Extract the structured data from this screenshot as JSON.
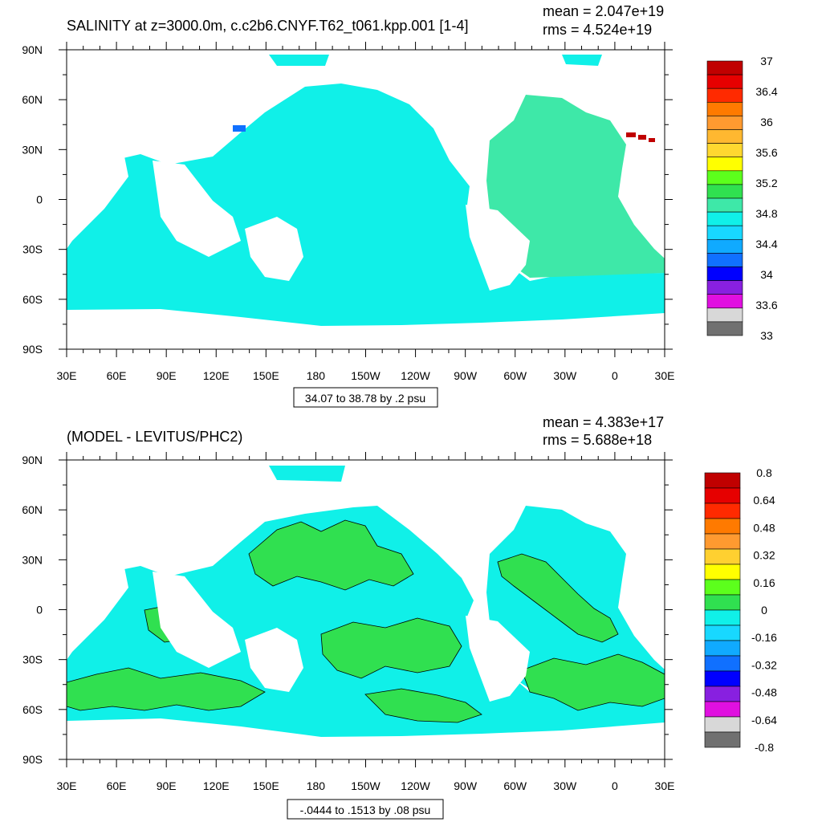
{
  "panels": [
    {
      "title": "SALINITY at z=3000.0m, c.c2b6.CNYF.T62_t061.kpp.001 [1-4]",
      "mean_label": "mean = 2.047e+19",
      "rms_label": "rms = 4.524e+19",
      "range_label": "34.07 to 38.78 by .2 psu",
      "colorbar_labels": [
        "37",
        "36.4",
        "36",
        "35.6",
        "35.2",
        "34.8",
        "34.4",
        "34",
        "33.6",
        "33"
      ]
    },
    {
      "title": "(MODEL - LEVITUS/PHC2)",
      "mean_label": "mean = 4.383e+17",
      "rms_label": "rms = 5.688e+18",
      "range_label": "-.0444 to .1513 by .08 psu",
      "colorbar_labels": [
        "0.8",
        "0.64",
        "0.48",
        "0.32",
        "0.16",
        "0",
        "-0.16",
        "-0.32",
        "-0.48",
        "-0.64",
        "-0.8"
      ]
    }
  ],
  "chart_data": [
    {
      "type": "heatmap",
      "title": "SALINITY at z=3000.0m, c.c2b6.CNYF.T62_t061.kpp.001 [1-4]",
      "mean": 2.047e+19,
      "rms": 4.524e+19,
      "x_tick_labels": [
        "30E",
        "60E",
        "90E",
        "120E",
        "150E",
        "180",
        "150W",
        "120W",
        "90W",
        "60W",
        "30W",
        "0",
        "30E"
      ],
      "y_tick_labels": [
        "90N",
        "60N",
        "30N",
        "0",
        "30S",
        "60S",
        "90S"
      ],
      "xlim": [
        30,
        390
      ],
      "ylim": [
        -90,
        90
      ],
      "colorbar_ticks": [
        37,
        36.4,
        36,
        35.6,
        35.2,
        34.8,
        34.4,
        34,
        33.6,
        33
      ],
      "colors": [
        "#c00000",
        "#e60000",
        "#ff2a00",
        "#ff7a00",
        "#ff9a30",
        "#ffb830",
        "#ffd830",
        "#ffff00",
        "#5cff1c",
        "#30e050",
        "#3ee8a8",
        "#10f0e8",
        "#18d8ff",
        "#10aaff",
        "#1070ff",
        "#0000ff",
        "#8820e0",
        "#e010e0",
        "#d8d8d8",
        "#707070"
      ],
      "dominant_value_range": [
        34.8,
        35.2
      ]
    },
    {
      "type": "heatmap",
      "title": "(MODEL - LEVITUS/PHC2)",
      "mean": 4.383e+17,
      "rms": 5.688e+18,
      "x_tick_labels": [
        "30E",
        "60E",
        "90E",
        "120E",
        "150E",
        "180",
        "150W",
        "120W",
        "90W",
        "60W",
        "30W",
        "0",
        "30E"
      ],
      "y_tick_labels": [
        "90N",
        "60N",
        "30N",
        "0",
        "30S",
        "60S",
        "90S"
      ],
      "xlim": [
        30,
        390
      ],
      "ylim": [
        -90,
        90
      ],
      "colorbar_ticks": [
        0.8,
        0.64,
        0.48,
        0.32,
        0.16,
        0,
        -0.16,
        -0.32,
        -0.48,
        -0.64,
        -0.8
      ],
      "colors": [
        "#c00000",
        "#e60000",
        "#ff2a00",
        "#ff7a00",
        "#ff9a30",
        "#ffd030",
        "#ffff00",
        "#5cff1c",
        "#30e050",
        "#10f0e8",
        "#18d8ff",
        "#10aaff",
        "#1070ff",
        "#0000ff",
        "#8820e0",
        "#e010e0",
        "#d8d8d8",
        "#707070"
      ],
      "dominant_value_range": [
        -0.16,
        0.16
      ]
    }
  ]
}
